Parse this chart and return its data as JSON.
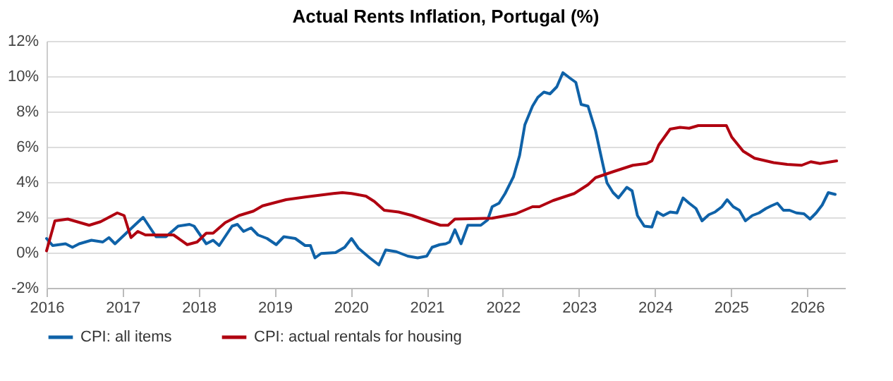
{
  "chart_data": {
    "type": "line",
    "title": "Actual Rents Inflation, Portugal (%)",
    "xlim": [
      2016,
      2026.5
    ],
    "xticks": [
      2016,
      2017,
      2018,
      2019,
      2020,
      2021,
      2022,
      2023,
      2024,
      2025,
      2026
    ],
    "ylim": [
      -2,
      12
    ],
    "yticks": [
      {
        "value": -2,
        "label": "-2%"
      },
      {
        "value": 0,
        "label": "0%"
      },
      {
        "value": 2,
        "label": "2%"
      },
      {
        "value": 4,
        "label": "4%"
      },
      {
        "value": 6,
        "label": "6%"
      },
      {
        "value": 8,
        "label": "8%"
      },
      {
        "value": 10,
        "label": "10%"
      },
      {
        "value": 12,
        "label": "12%"
      }
    ],
    "grid": "y",
    "legend": "bottom",
    "line_style": "solid",
    "series": [
      {
        "name": "CPI: all items",
        "color": "#0f62a8",
        "x": [
          2016.0,
          2016.08,
          2016.25,
          2016.34,
          2016.43,
          2016.59,
          2016.74,
          2016.82,
          2016.9,
          2017.17,
          2017.27,
          2017.44,
          2017.57,
          2017.73,
          2017.88,
          2017.94,
          2018.1,
          2018.19,
          2018.27,
          2018.44,
          2018.51,
          2018.59,
          2018.69,
          2018.78,
          2018.9,
          2019.02,
          2019.12,
          2019.27,
          2019.4,
          2019.47,
          2019.53,
          2019.61,
          2019.8,
          2019.92,
          2020.01,
          2020.1,
          2020.25,
          2020.37,
          2020.46,
          2020.6,
          2020.75,
          2020.88,
          2021.0,
          2021.07,
          2021.17,
          2021.25,
          2021.3,
          2021.37,
          2021.45,
          2021.54,
          2021.71,
          2021.8,
          2021.86,
          2021.95,
          2022.03,
          2022.14,
          2022.22,
          2022.29,
          2022.39,
          2022.46,
          2022.54,
          2022.62,
          2022.71,
          2022.79,
          2022.88,
          2022.96,
          2023.03,
          2023.12,
          2023.22,
          2023.29,
          2023.37,
          2023.45,
          2023.52,
          2023.63,
          2023.7,
          2023.77,
          2023.86,
          2023.96,
          2024.03,
          2024.11,
          2024.2,
          2024.29,
          2024.37,
          2024.45,
          2024.54,
          2024.62,
          2024.71,
          2024.79,
          2024.88,
          2024.95,
          2025.03,
          2025.11,
          2025.19,
          2025.28,
          2025.37,
          2025.46,
          2025.53,
          2025.61,
          2025.69,
          2025.77,
          2025.86,
          2025.96,
          2026.04,
          2026.12,
          2026.2,
          2026.28,
          2026.37
        ],
        "values": [
          0.8,
          0.4,
          0.5,
          0.3,
          0.5,
          0.7,
          0.6,
          0.85,
          0.5,
          1.6,
          2.0,
          0.9,
          0.9,
          1.5,
          1.6,
          1.5,
          0.5,
          0.7,
          0.4,
          1.5,
          1.6,
          1.2,
          1.4,
          1.0,
          0.8,
          0.45,
          0.9,
          0.8,
          0.4,
          0.4,
          -0.3,
          -0.05,
          0,
          0.3,
          0.8,
          0.25,
          -0.3,
          -0.7,
          0.15,
          0.05,
          -0.2,
          -0.3,
          -0.2,
          0.3,
          0.45,
          0.5,
          0.6,
          1.3,
          0.5,
          1.55,
          1.55,
          1.85,
          2.6,
          2.8,
          3.35,
          4.3,
          5.5,
          7.25,
          8.3,
          8.8,
          9.1,
          9.0,
          9.4,
          10.2,
          9.9,
          9.65,
          8.4,
          8.3,
          6.9,
          5.5,
          3.95,
          3.4,
          3.1,
          3.7,
          3.5,
          2.1,
          1.5,
          1.45,
          2.3,
          2.1,
          2.3,
          2.25,
          3.1,
          2.8,
          2.5,
          1.8,
          2.15,
          2.3,
          2.6,
          3.0,
          2.6,
          2.4,
          1.8,
          2.1,
          2.25,
          2.5,
          2.65,
          2.8,
          2.4,
          2.4,
          2.25,
          2.2,
          1.9,
          2.25,
          2.7,
          3.4,
          3.3
        ]
      },
      {
        "name": "CPI: actual rentals for housing",
        "color": "#b00010",
        "x": [
          2016.0,
          2016.11,
          2016.28,
          2016.56,
          2016.71,
          2016.93,
          2017.02,
          2017.11,
          2017.2,
          2017.3,
          2017.67,
          2017.85,
          2017.98,
          2018.1,
          2018.19,
          2018.35,
          2018.53,
          2018.72,
          2018.84,
          2019.15,
          2019.4,
          2019.77,
          2019.89,
          2020.01,
          2020.2,
          2020.31,
          2020.44,
          2020.63,
          2020.81,
          2020.94,
          2021.18,
          2021.28,
          2021.37,
          2021.86,
          2022.17,
          2022.39,
          2022.48,
          2022.66,
          2022.94,
          2023.12,
          2023.22,
          2023.46,
          2023.71,
          2023.89,
          2023.96,
          2024.05,
          2024.2,
          2024.33,
          2024.45,
          2024.57,
          2024.94,
          2025.01,
          2025.16,
          2025.31,
          2025.56,
          2025.74,
          2025.93,
          2026.05,
          2026.17,
          2026.39
        ],
        "values": [
          0.1,
          1.8,
          1.9,
          1.55,
          1.75,
          2.25,
          2.1,
          0.85,
          1.2,
          1.0,
          1.0,
          0.45,
          0.6,
          1.1,
          1.1,
          1.7,
          2.1,
          2.35,
          2.65,
          3.0,
          3.15,
          3.35,
          3.4,
          3.35,
          3.2,
          2.9,
          2.4,
          2.3,
          2.1,
          1.9,
          1.55,
          1.55,
          1.9,
          1.95,
          2.2,
          2.6,
          2.6,
          2.95,
          3.35,
          3.85,
          4.25,
          4.6,
          4.95,
          5.05,
          5.2,
          6.1,
          7.0,
          7.1,
          7.05,
          7.2,
          7.2,
          6.55,
          5.75,
          5.35,
          5.1,
          5.0,
          4.95,
          5.15,
          5.05,
          5.2
        ]
      }
    ]
  }
}
